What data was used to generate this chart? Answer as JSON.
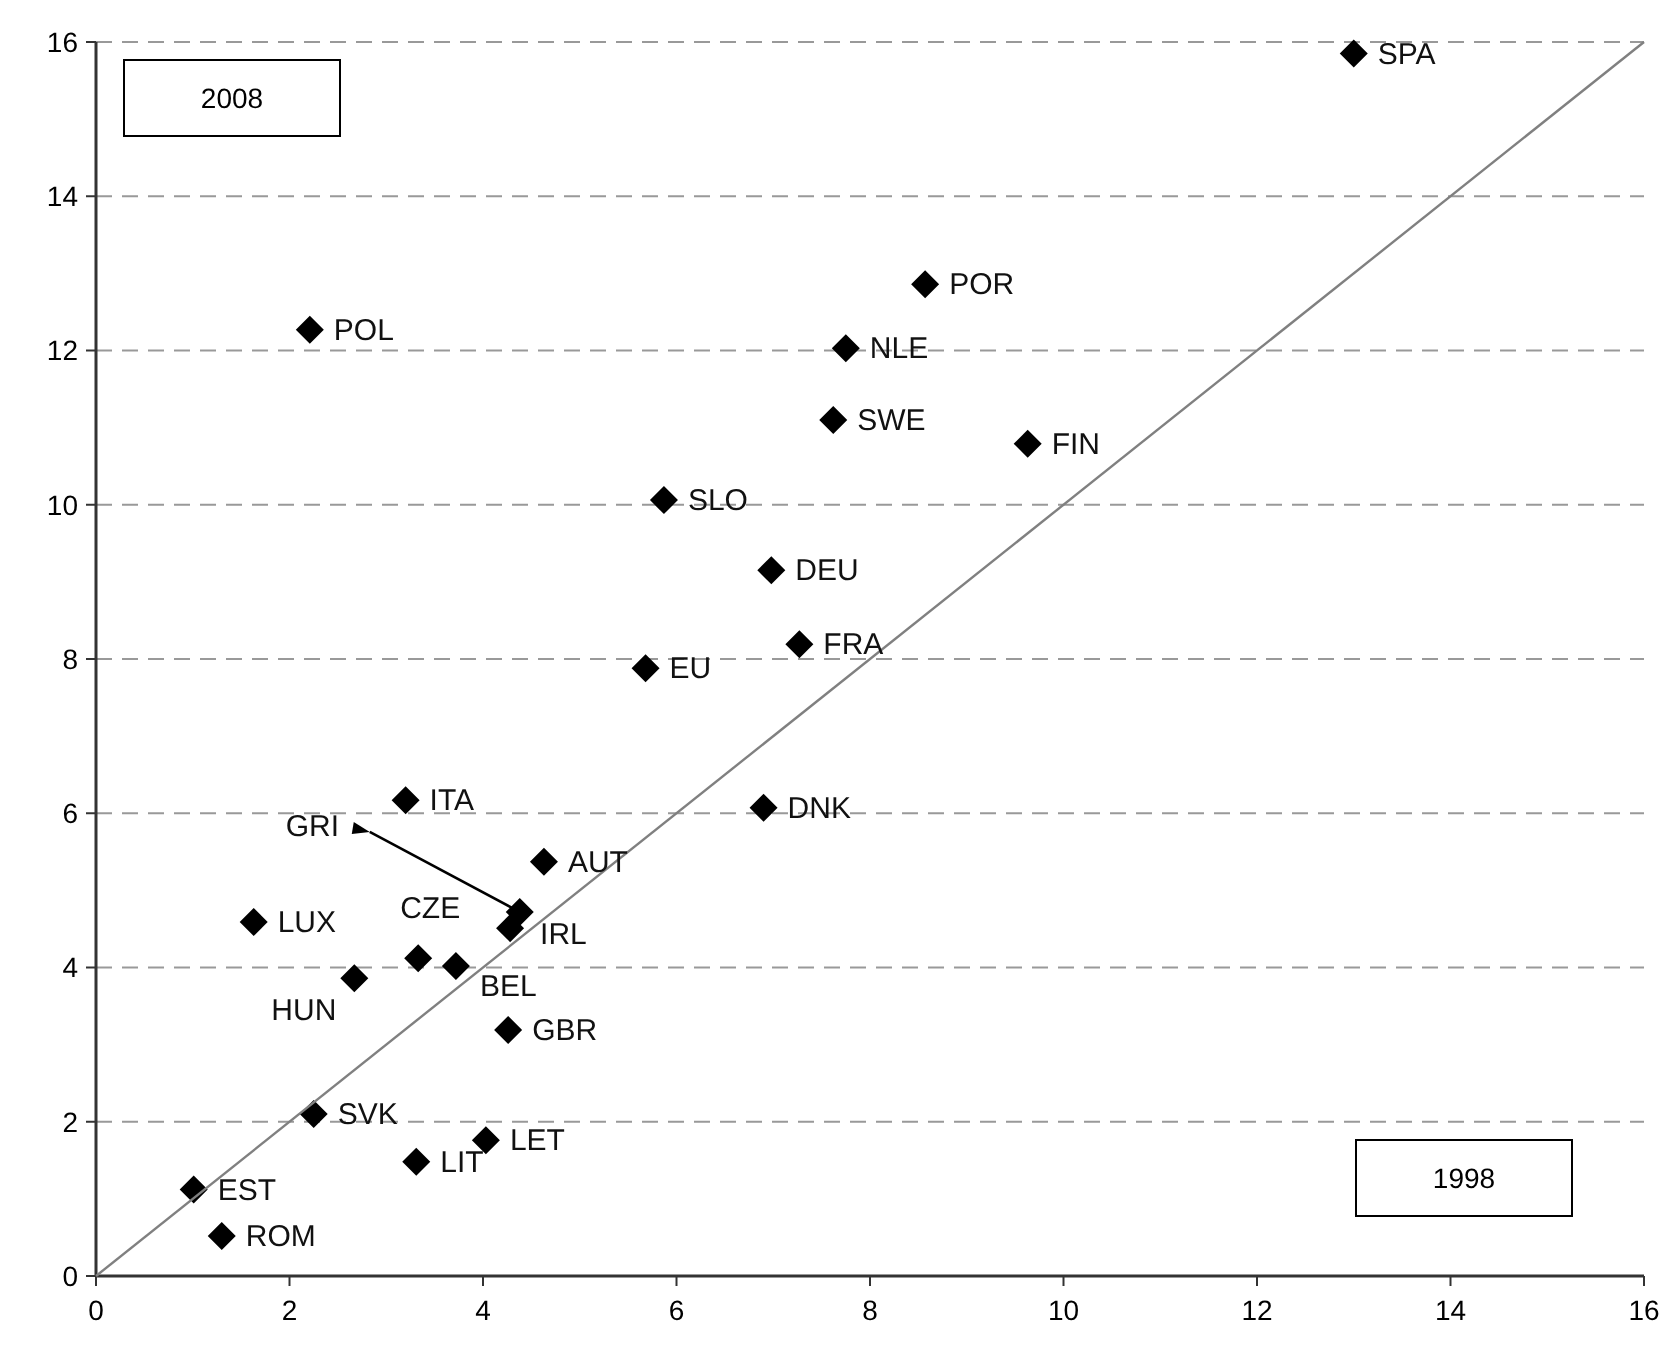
{
  "chart_data": {
    "type": "scatter",
    "xlim": [
      0,
      16
    ],
    "ylim": [
      0,
      16
    ],
    "xticks": [
      0,
      2,
      4,
      6,
      8,
      10,
      12,
      14,
      16
    ],
    "yticks": [
      0,
      2,
      4,
      6,
      8,
      10,
      12,
      14,
      16
    ],
    "grid": "y",
    "marker": "diamond",
    "series": [
      {
        "color": "#000000",
        "x": [
          13.0,
          8.57,
          2.21,
          7.75,
          7.62,
          9.63,
          5.87,
          6.98,
          7.27,
          5.68,
          3.2,
          6.9,
          4.63,
          4.38,
          4.28,
          1.63,
          3.33,
          3.72,
          2.67,
          4.26,
          2.25,
          4.03,
          3.31,
          1.01,
          1.3
        ],
        "values": [
          15.85,
          12.86,
          12.27,
          12.03,
          11.1,
          10.79,
          10.06,
          9.15,
          8.19,
          7.88,
          6.17,
          6.07,
          5.37,
          4.72,
          4.51,
          4.59,
          4.12,
          4.02,
          3.86,
          3.19,
          2.1,
          1.76,
          1.48,
          1.12,
          0.52
        ]
      },
      {
        "type": "line",
        "marker": "none",
        "color": "#808080",
        "x": [
          0,
          16
        ],
        "values": [
          0,
          16
        ]
      }
    ],
    "annotations": [
      "2008",
      "1998",
      {
        "text": "SPA",
        "x": 13.0,
        "y": 15.85
      },
      {
        "text": "POR",
        "x": 8.57,
        "y": 12.86
      },
      {
        "text": "POL",
        "x": 2.21,
        "y": 12.27
      },
      {
        "text": "NLE",
        "x": 7.75,
        "y": 12.03
      },
      {
        "text": "SWE",
        "x": 7.62,
        "y": 11.1
      },
      {
        "text": "FIN",
        "x": 9.63,
        "y": 10.79
      },
      {
        "text": "SLO",
        "x": 5.87,
        "y": 10.06
      },
      {
        "text": "DEU",
        "x": 6.98,
        "y": 9.15
      },
      {
        "text": "FRA",
        "x": 7.27,
        "y": 8.19
      },
      {
        "text": "EU",
        "x": 5.68,
        "y": 7.88
      },
      {
        "text": "ITA",
        "x": 3.2,
        "y": 6.17
      },
      {
        "text": "DNK",
        "x": 6.9,
        "y": 6.07
      },
      {
        "text": "AUT",
        "x": 4.63,
        "y": 5.37
      },
      {
        "text": "GRI",
        "x": 4.38,
        "y": 4.72
      },
      {
        "text": "IRL",
        "x": 4.28,
        "y": 4.51
      },
      {
        "text": "LUX",
        "x": 1.63,
        "y": 4.59
      },
      {
        "text": "CZE",
        "x": 3.33,
        "y": 4.12
      },
      {
        "text": "BEL",
        "x": 3.72,
        "y": 4.02
      },
      {
        "text": "HUN",
        "x": 2.67,
        "y": 3.86
      },
      {
        "text": "GBR",
        "x": 4.26,
        "y": 3.19
      },
      {
        "text": "SVK",
        "x": 2.25,
        "y": 2.1
      },
      {
        "text": "LET",
        "x": 4.03,
        "y": 1.76
      },
      {
        "text": "LIT",
        "x": 3.31,
        "y": 1.48
      },
      {
        "text": "EST",
        "x": 1.01,
        "y": 1.12
      },
      {
        "text": "ROM",
        "x": 1.3,
        "y": 0.52
      }
    ]
  }
}
